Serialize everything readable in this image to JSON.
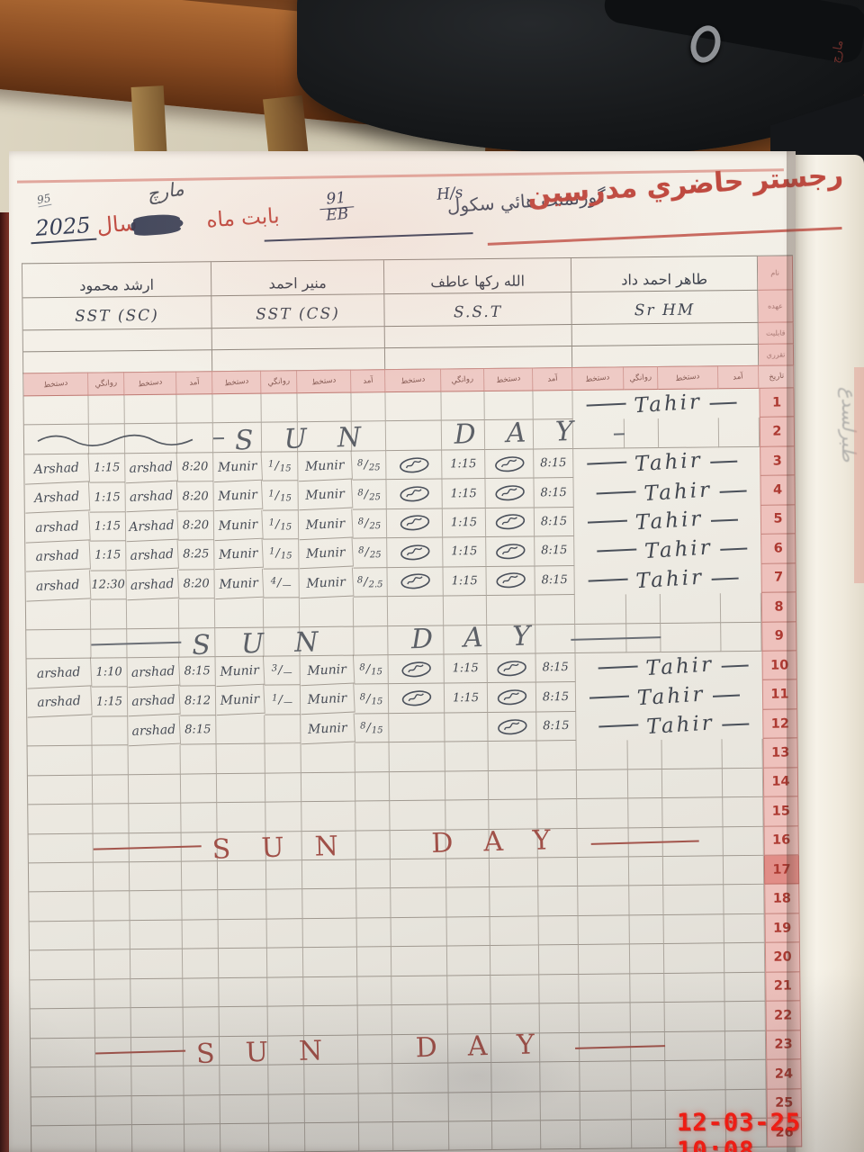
{
  "photo": {
    "timestamp": "12-03-25 10:08"
  },
  "header": {
    "page_number": "95",
    "year": "2025",
    "year_label": "سال",
    "month": "مارچ",
    "for_month_label": "بابت ماه",
    "code_numerator": "91",
    "code_denominator": "EB",
    "school_type": "H/s",
    "school_name": "گورنمنت هائي سكول",
    "title": "رجستر حاضري مدرسين",
    "next_page_peek": "مارچ"
  },
  "teachers": [
    {
      "name": "ارشد محمود",
      "designation": "SST (SC)"
    },
    {
      "name": "منير احمد",
      "designation": "SST (CS)"
    },
    {
      "name": "الله ركها عاطف",
      "designation": "S.S.T"
    },
    {
      "name": "طاهر احمد داد",
      "designation": "Sr HM"
    }
  ],
  "columns": {
    "sub_labels": [
      "دستخط",
      "روانگي",
      "دستخط",
      "آمد"
    ],
    "date_label": "تاريخ"
  },
  "margin_labels": [
    "نام",
    "عهده",
    "قابليت",
    "تقرري"
  ],
  "sunday_label": "SUN DAY",
  "hm_signature": "Tahir",
  "circled_signature_token": "[sig]",
  "rows": [
    {
      "n": 1,
      "hm": true
    },
    {
      "n": 2,
      "squiggle": true,
      "sunday": "pencil"
    },
    {
      "n": 3,
      "hm": true,
      "cells": [
        "Arshad",
        "1:15",
        "arshad",
        "8:20",
        "Munir",
        "1/15",
        "Munir",
        "8/25",
        "[sig]",
        "1:15",
        "[sig]",
        "8:15"
      ]
    },
    {
      "n": 4,
      "hm": true,
      "cells": [
        "Arshad",
        "1:15",
        "arshad",
        "8:20",
        "Munir",
        "1/15",
        "Munir",
        "8/25",
        "[sig]",
        "1:15",
        "[sig]",
        "8:15"
      ]
    },
    {
      "n": 5,
      "hm": true,
      "cells": [
        "arshad",
        "1:15",
        "Arshad",
        "8:20",
        "Munir",
        "1/15",
        "Munir",
        "8/25",
        "[sig]",
        "1:15",
        "[sig]",
        "8:15"
      ]
    },
    {
      "n": 6,
      "hm": true,
      "cells": [
        "arshad",
        "1:15",
        "arshad",
        "8:25",
        "Munir",
        "1/15",
        "Munir",
        "8/25",
        "[sig]",
        "1:15",
        "[sig]",
        "8:15"
      ]
    },
    {
      "n": 7,
      "hm": true,
      "cells": [
        "arshad",
        "12:30",
        "arshad",
        "8:20",
        "Munir",
        "4/—",
        "Munir",
        "8/2.5",
        "[sig]",
        "1:15",
        "[sig]",
        "8:15"
      ]
    },
    {
      "n": 8
    },
    {
      "n": 9,
      "sunday": "pencil"
    },
    {
      "n": 10,
      "hm": true,
      "cells": [
        "arshad",
        "1:10",
        "arshad",
        "8:15",
        "Munir",
        "3/—",
        "Munir",
        "8/15",
        "[sig]",
        "1:15",
        "[sig]",
        "8:15"
      ]
    },
    {
      "n": 11,
      "hm": true,
      "cells": [
        "arshad",
        "1:15",
        "arshad",
        "8:12",
        "Munir",
        "1/—",
        "Munir",
        "8/15",
        "[sig]",
        "1:15",
        "[sig]",
        "8:15"
      ]
    },
    {
      "n": 12,
      "hm": true,
      "cells": [
        "",
        "",
        "arshad",
        "8:15",
        "",
        "",
        "Munir",
        "8/15",
        "",
        "",
        "[sig]",
        "8:15"
      ]
    },
    {
      "n": 13
    },
    {
      "n": 14
    },
    {
      "n": 15
    },
    {
      "n": 16,
      "sunday": "red"
    },
    {
      "n": 17,
      "highlight": true
    },
    {
      "n": 18
    },
    {
      "n": 19
    },
    {
      "n": 20
    },
    {
      "n": 21
    },
    {
      "n": 22
    },
    {
      "n": 23,
      "sunday": "red"
    },
    {
      "n": 24
    },
    {
      "n": 25
    },
    {
      "n": 26
    }
  ]
}
